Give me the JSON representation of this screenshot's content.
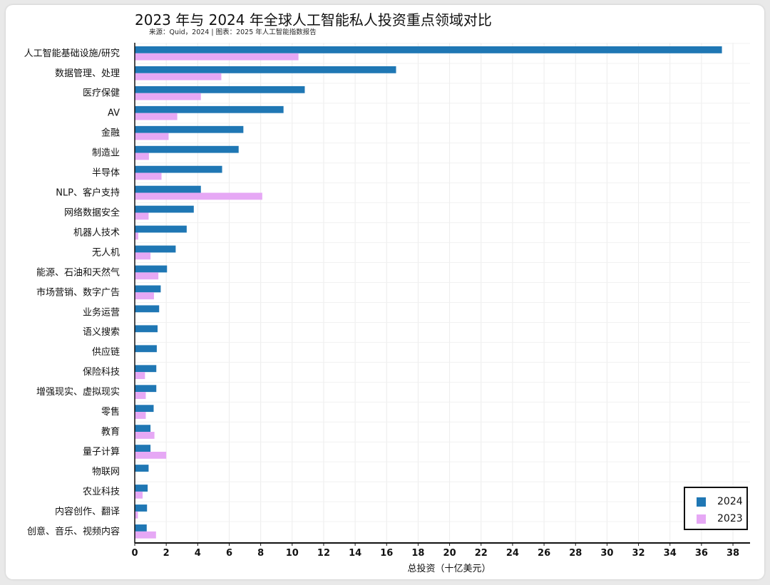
{
  "chart_data": {
    "type": "bar",
    "orientation": "horizontal",
    "title": "2023 年与 2024 年全球人工智能私人投资重点领域对比",
    "subtitle": "来源：Quid，2024 | 图表：2025 年人工智能指数报告",
    "xlabel": "总投资（十亿美元）",
    "xlim": [
      0,
      39
    ],
    "xticks": [
      0,
      2,
      4,
      6,
      8,
      10,
      12,
      14,
      16,
      18,
      20,
      22,
      24,
      26,
      28,
      30,
      32,
      34,
      36,
      38
    ],
    "grid": true,
    "legend_position": "bottom-right",
    "categories": [
      "人工智能基础设施/研究",
      "数据管理、处理",
      "医疗保健",
      "AV",
      "金融",
      "制造业",
      "半导体",
      "NLP、客户支持",
      "网络数据安全",
      "机器人技术",
      "无人机",
      "能源、石油和天然气",
      "市场营销、数字广告",
      "业务运营",
      "语义搜索",
      "供应链",
      "保险科技",
      "增强现实、虚拟现实",
      "零售",
      "教育",
      "量子计算",
      "物联网",
      "农业科技",
      "内容创作、翻译",
      "创意、音乐、视频内容"
    ],
    "series": [
      {
        "name": "2024",
        "color": "#1f77b4",
        "values": [
          37.3,
          16.6,
          10.8,
          9.45,
          6.9,
          6.6,
          5.55,
          4.2,
          3.75,
          3.3,
          2.6,
          2.05,
          1.65,
          1.55,
          1.45,
          1.4,
          1.37,
          1.37,
          1.2,
          1.0,
          1.0,
          0.88,
          0.82,
          0.78,
          0.76
        ]
      },
      {
        "name": "2023",
        "color": "#e6a8f5",
        "values": [
          10.4,
          5.5,
          4.2,
          2.7,
          2.15,
          0.9,
          1.7,
          8.1,
          0.88,
          0.22,
          1.0,
          1.5,
          1.22,
          0.0,
          0.0,
          0.0,
          0.65,
          0.7,
          0.7,
          1.25,
          2.0,
          0.0,
          0.5,
          0.2,
          1.35
        ]
      }
    ]
  }
}
